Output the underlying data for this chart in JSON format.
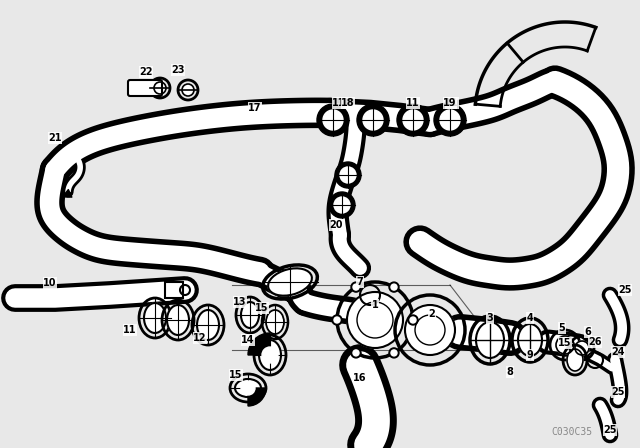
{
  "background_color": "#e8e8e8",
  "diagram_bg": "#ffffff",
  "line_color": "#000000",
  "watermark": "C030C35",
  "figsize": [
    6.4,
    4.48
  ],
  "dpi": 100
}
